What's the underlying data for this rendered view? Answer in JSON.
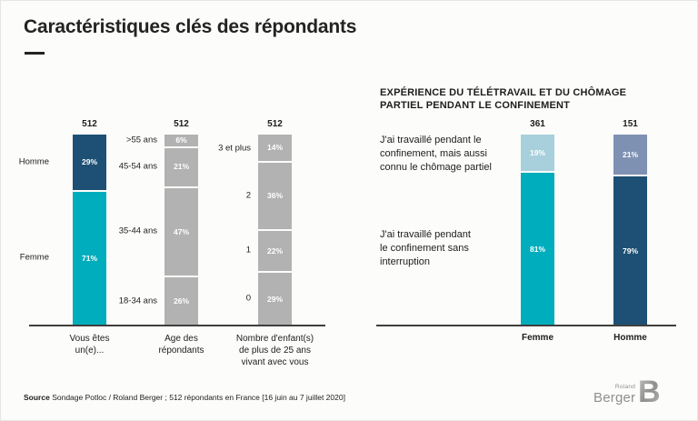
{
  "page": {
    "title": "Caractéristiques clés des répondants"
  },
  "right_section": {
    "heading": "EXPÉRIENCE DU TÉLÉTRAVAIL ET DU CHÔMAGE\nPARTIEL PENDANT LE CONFINEMENT",
    "statement_partial": "J'ai travaillé pendant le\nconfinement, mais aussi\nconnu le chômage partiel",
    "statement_no_interruption": "J'ai travaillé pendant\nle confinement sans\ninterruption"
  },
  "source": {
    "prefix": "Source",
    "text": " Sondage Potloc / Roland Berger ; 512 répondants en France [16 juin au 7 juillet 2020]"
  },
  "logo": {
    "line1": "Roland",
    "line2": "Berger"
  },
  "colors": {
    "navy": "#1d5074",
    "teal": "#00adbc",
    "gray": "#b2b2b2",
    "light_blue": "#a7d0dc",
    "gray_blue": "#7f91b3",
    "background": "#fcfcfa",
    "text": "#1d1d1b"
  },
  "chart_data": [
    {
      "type": "bar",
      "subtype": "stacked_vertical",
      "id": "gender",
      "total": "512",
      "title": "Vous êtes\nun(e)...",
      "unit": "%",
      "segments": [
        {
          "label": "Homme",
          "pct": 29,
          "color": "navy"
        },
        {
          "label": "Femme",
          "pct": 71,
          "color": "teal"
        }
      ]
    },
    {
      "type": "bar",
      "subtype": "stacked_vertical",
      "id": "age",
      "total": "512",
      "title": "Age des\nrépondants",
      "unit": "%",
      "segments": [
        {
          "label": ">55 ans",
          "pct": 6,
          "color": "gray"
        },
        {
          "label": "45-54 ans",
          "pct": 21,
          "color": "gray"
        },
        {
          "label": "35-44 ans",
          "pct": 47,
          "color": "gray"
        },
        {
          "label": "18-34 ans",
          "pct": 26,
          "color": "gray"
        }
      ]
    },
    {
      "type": "bar",
      "subtype": "stacked_vertical",
      "id": "children",
      "total": "512",
      "title": "Nombre d'enfant(s)\nde plus de 25 ans\nvivant avec vous",
      "unit": "%",
      "segments": [
        {
          "label": "3 et plus",
          "pct": 14,
          "color": "gray"
        },
        {
          "label": "2",
          "pct": 36,
          "color": "gray"
        },
        {
          "label": "1",
          "pct": 22,
          "color": "gray"
        },
        {
          "label": "0",
          "pct": 29,
          "color": "gray"
        }
      ]
    },
    {
      "type": "bar",
      "subtype": "stacked_vertical",
      "id": "teletravail-femme",
      "total": "361",
      "title": "Femme",
      "unit": "%",
      "segments": [
        {
          "pct": 19,
          "color": "light_blue",
          "series": "travaillé + chômage partiel"
        },
        {
          "pct": 81,
          "color": "teal",
          "series": "travaillé sans interruption"
        }
      ]
    },
    {
      "type": "bar",
      "subtype": "stacked_vertical",
      "id": "teletravail-homme",
      "total": "151",
      "title": "Homme",
      "unit": "%",
      "segments": [
        {
          "pct": 21,
          "color": "gray_blue",
          "series": "travaillé + chômage partiel"
        },
        {
          "pct": 79,
          "color": "navy",
          "series": "travaillé sans interruption"
        }
      ]
    }
  ]
}
